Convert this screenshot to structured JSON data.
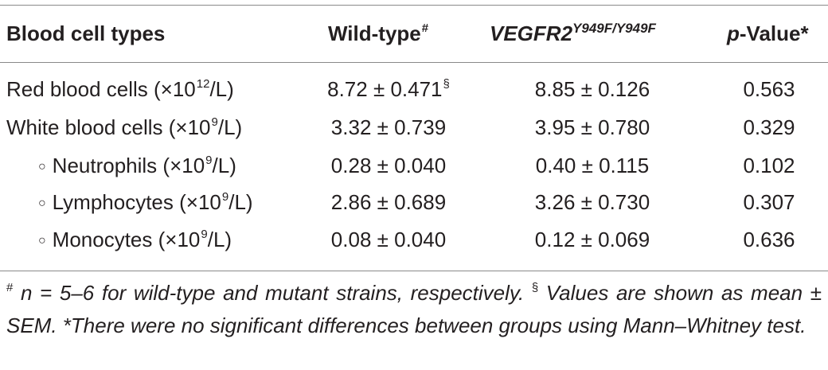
{
  "header": {
    "col1": "Blood cell types",
    "col2": "Wild-type",
    "col2_sup": "#",
    "col3": "VEGFR2",
    "col3_sup": "Y949F/Y949F",
    "col4_italic": "p",
    "col4_rest": "-Value*"
  },
  "rows": [
    {
      "label_pre": "Red blood cells (×10",
      "label_sup": "12",
      "label_post": "/L)",
      "wild": "8.72 ± 0.471",
      "wild_sup": "§",
      "mutant": "8.85 ± 0.126",
      "p": "0.563"
    },
    {
      "label_pre": "White blood cells (×10",
      "label_sup": "9",
      "label_post": "/L)",
      "wild": "3.32 ± 0.739",
      "mutant": "3.95 ± 0.780",
      "p": "0.329"
    },
    {
      "bullet": "○",
      "label_pre": "Neutrophils (×10",
      "label_sup": "9",
      "label_post": "/L)",
      "wild": "0.28 ± 0.040",
      "mutant": "0.40 ± 0.115",
      "p": "0.102"
    },
    {
      "bullet": "○",
      "label_pre": "Lymphocytes (×10",
      "label_sup": "9",
      "label_post": "/L)",
      "wild": "2.86 ± 0.689",
      "mutant": "3.26 ± 0.730",
      "p": "0.307"
    },
    {
      "bullet": "○",
      "label_pre": "Monocytes (×10",
      "label_sup": "9",
      "label_post": "/L)",
      "wild": "0.08 ± 0.040",
      "mutant": "0.12 ± 0.069",
      "p": "0.636"
    }
  ],
  "footnote": {
    "sup1": "#",
    "text1": " n = 5–6 for wild-type and mutant strains, respectively. ",
    "sup2": "§",
    "text2": " Values are shown as mean ± SEM. *There were no significant differences between groups using Mann–Whitney test."
  }
}
